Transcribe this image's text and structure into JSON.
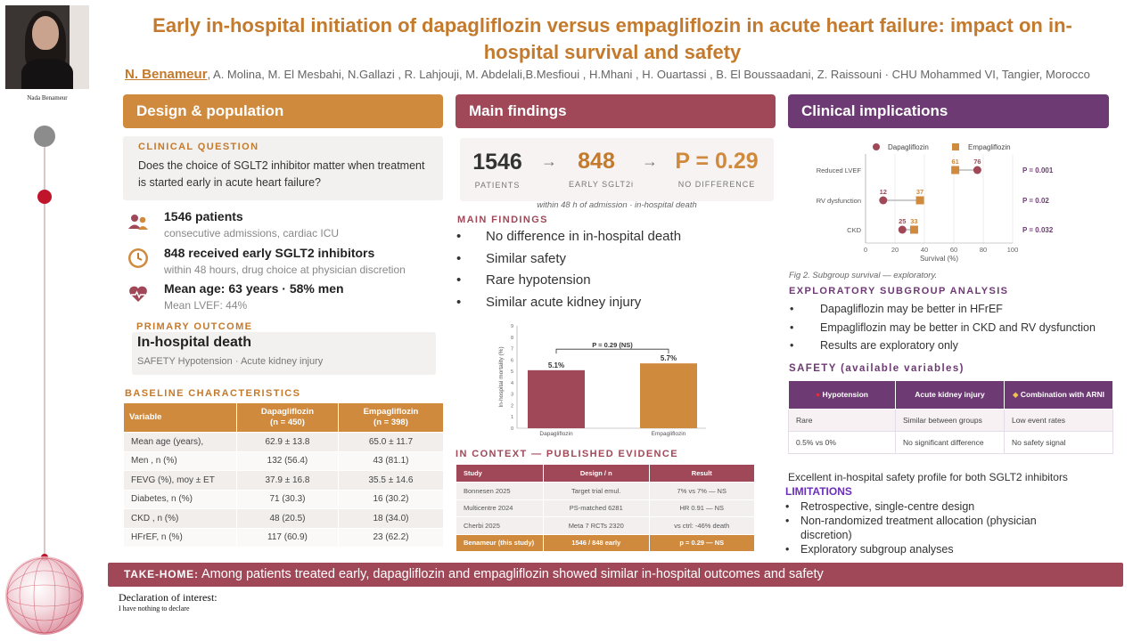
{
  "presenter": {
    "name": "Nada Benameur"
  },
  "header": {
    "title": "Early in-hospital initiation of dapagliflozin versus empagliflozin in acute heart failure: impact on in-hospital survival and safety",
    "lead_author": "N. Benameur",
    "authors_rest": ", A. Molina, M. El Mesbahi, N.Gallazi , R. Lahjouji, M. Abdelali,B.Mesfioui , H.Mhani , H. Ouartassi ,  B. El Boussaadani, Z. Raissouni · CHU Mohammed VI, Tangier, Morocco"
  },
  "sections": {
    "design": "Design & population",
    "findings": "Main findings",
    "clinical": "Clinical implications"
  },
  "design": {
    "question_label": "CLINICAL QUESTION",
    "question": "Does the choice of SGLT2 inhibitor matter when treatment is started early in acute heart failure?",
    "stats": [
      {
        "icon": "people-icon",
        "main": "1546 patients",
        "sub": "consecutive admissions, cardiac ICU"
      },
      {
        "icon": "clock-icon",
        "main": "848 received early SGLT2 inhibitors",
        "sub": "within 48 hours,  drug choice at physician discretion"
      },
      {
        "icon": "heart-icon",
        "main": "Mean age: 63 years  ·  58% men",
        "sub": "Mean LVEF: 44%"
      }
    ],
    "primary_label": "PRIMARY OUTCOME",
    "primary_title": "In-hospital death",
    "primary_sub": "SAFETY   Hypotension · Acute kidney injury",
    "baseline_label": "BASELINE CHARACTERISTICS",
    "baseline_headers": [
      "Variable",
      "Dapagliflozin",
      "(n = 450)",
      "Empagliflozin",
      "(n = 398)"
    ],
    "baseline_rows": [
      [
        "Mean age (years),",
        "62.9 ± 13.8",
        "65.0 ± 11.7"
      ],
      [
        "Men , n (%)",
        "132 (56.4)",
        "43 (81.1)"
      ],
      [
        "FEVG (%), moy ± ET",
        "37.9 ± 16.8",
        "35.5 ± 14.6"
      ],
      [
        "Diabetes, n (%)",
        "71 (30.3)",
        "16 (30.2)"
      ],
      [
        "CKD , n (%)",
        "48 (20.5)",
        "18 (34.0)"
      ],
      [
        "HFrEF, n (%)",
        "117 (60.9)",
        "23 (62.2)"
      ]
    ]
  },
  "findings": {
    "kpis": [
      {
        "value": "1546",
        "label": "PATIENTS",
        "color": "#333333"
      },
      {
        "value": "848",
        "label": "EARLY SGLT2i",
        "color": "#c47a2c"
      },
      {
        "value": "P = 0.29",
        "label": "NO DIFFERENCE",
        "color": "#d08a3e"
      }
    ],
    "kpi_note": "within 48 h of admission · in-hospital death",
    "main_label": "MAIN FINDINGS",
    "items": [
      "No difference in in-hospital death",
      "Similar safety",
      "Rare hypotension",
      "Similar acute kidney injury"
    ],
    "context_label": "IN CONTEXT — PUBLISHED EVIDENCE",
    "context_headers": [
      "Study",
      "Design / n",
      "Result"
    ],
    "context_rows": [
      [
        "Bonnesen 2025",
        "Target trial emul.",
        "7% vs 7% — NS"
      ],
      [
        "Multicentre 2024",
        "PS-matched 6281",
        "HR 0.91 — NS"
      ],
      [
        "Cherbi 2025",
        "Meta 7 RCTs 2320",
        "vs ctrl: -46% death"
      ],
      [
        "Benameur (this study)",
        "1546 / 848 early",
        "p = 0.29 — NS"
      ]
    ]
  },
  "chart_data": [
    {
      "type": "bar",
      "categories": [
        "Dapagliflozin",
        "Empagliflozin"
      ],
      "values": [
        5.1,
        5.7
      ],
      "data_labels": [
        "5.1%",
        "5.7%"
      ],
      "ylabel": "In-hospital mortality (%)",
      "yticks": [
        0,
        1,
        2,
        3,
        4,
        5,
        6,
        7,
        8,
        9
      ],
      "ylim": [
        0,
        9
      ],
      "annotation": "P = 0.29 (NS)",
      "colors": [
        "#a04858",
        "#d08a3e"
      ],
      "grid": false
    },
    {
      "type": "scatter",
      "categories": [
        "Reduced LVEF",
        "RV dysfunction",
        "CKD"
      ],
      "series": [
        {
          "name": "Dapagliflozin",
          "values": [
            76,
            12,
            25
          ],
          "color": "#a04858"
        },
        {
          "name": "Empagliflozin",
          "values": [
            61,
            37,
            33
          ],
          "color": "#d08a3e"
        }
      ],
      "p_values": [
        "P = 0.001",
        "P = 0.02",
        "P = 0.032"
      ],
      "xlabel": "Survival (%)",
      "xticks": [
        0,
        20,
        40,
        60,
        80,
        100
      ],
      "xlim": [
        0,
        100
      ],
      "legend": "top",
      "grid": true
    }
  ],
  "clinical": {
    "fig_caption": "Fig 2. Subgroup survival — exploratory.",
    "exploratory_label": "EXPLORATORY SUBGROUP ANALYSIS",
    "exploratory_items": [
      "Dapagliflozin may be better in HFrEF",
      "Empagliflozin may be better in CKD and RV dysfunction",
      "Results are exploratory only"
    ],
    "safety_label": "SAFETY (available variables)",
    "safety_headers": [
      "Hypotension",
      "Acute kidney injury",
      "Combination with ARNI"
    ],
    "safety_rows": [
      [
        "Rare",
        "Similar between groups",
        "Low event rates"
      ],
      [
        "0.5% vs 0%",
        "No significant difference",
        "No safety signal"
      ]
    ],
    "excellent": "Excellent in-hospital safety profile for both SGLT2 inhibitors",
    "limitations_label": "LIMITATIONS",
    "limitations": [
      "Retrospective, single-centre design",
      "Non-randomized treatment allocation (physician discretion)",
      "Exploratory subgroup analyses"
    ]
  },
  "takehome": {
    "label": "TAKE-HOME:",
    "text": " Among patients treated early, dapagliflozin and empagliflozin showed similar in-hospital outcomes and safety"
  },
  "declaration": {
    "title": "Declaration of interest:",
    "text": "I have nothing to declare"
  }
}
